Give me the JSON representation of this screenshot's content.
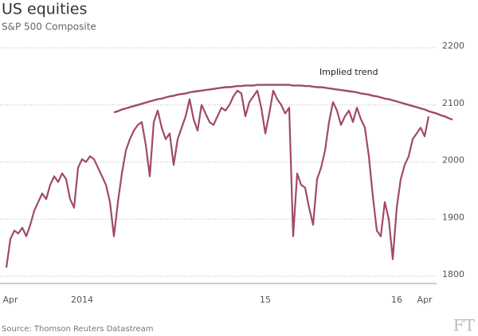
{
  "chart_data": {
    "type": "line",
    "title": "US equities",
    "subtitle": "S&P 500 Composite",
    "source": "Source: Thomson Reuters Datastream",
    "logo": "FT",
    "categories": [
      null,
      "Apr",
      null,
      null,
      null,
      null,
      null,
      null,
      null,
      null,
      null,
      null,
      null,
      null,
      null,
      null,
      null,
      null,
      null,
      "2014",
      null,
      null,
      null,
      null,
      null,
      null,
      null,
      null,
      null,
      null,
      null,
      null,
      null,
      null,
      null,
      null,
      null,
      null,
      null,
      null,
      null,
      null,
      null,
      null,
      null,
      null,
      null,
      null,
      null,
      null,
      null,
      null,
      null,
      null,
      null,
      null,
      null,
      null,
      null,
      null,
      null,
      null,
      null,
      null,
      null,
      "15",
      null,
      null,
      null,
      null,
      null,
      null,
      null,
      null,
      null,
      null,
      null,
      null,
      null,
      null,
      null,
      null,
      null,
      null,
      null,
      null,
      null,
      null,
      null,
      null,
      null,
      null,
      null,
      null,
      null,
      null,
      null,
      null,
      "16",
      null,
      null,
      null,
      null,
      null,
      null,
      "Apr",
      null,
      null,
      null,
      null,
      null,
      null,
      null
    ],
    "series": [
      {
        "color": "#a04a66",
        "values": [
          1815,
          1865,
          1880,
          1875,
          1885,
          1870,
          1890,
          1915,
          1930,
          1945,
          1935,
          1960,
          1975,
          1965,
          1980,
          1970,
          1935,
          1920,
          1990,
          2005,
          2000,
          2010,
          2005,
          1990,
          1975,
          1960,
          1930,
          1870,
          1930,
          1980,
          2020,
          2040,
          2055,
          2065,
          2070,
          2030,
          1975,
          2070,
          2090,
          2060,
          2040,
          2050,
          1995,
          2040,
          2060,
          2080,
          2110,
          2075,
          2055,
          2100,
          2085,
          2070,
          2065,
          2080,
          2095,
          2090,
          2100,
          2115,
          2125,
          2120,
          2080,
          2105,
          2115,
          2125,
          2095,
          2050,
          2085,
          2125,
          2110,
          2100,
          2085,
          2095,
          1870,
          1980,
          1960,
          1955,
          1920,
          1890,
          1970,
          1990,
          2020,
          2070,
          2105,
          2090,
          2065,
          2080,
          2090,
          2070,
          2095,
          2075,
          2060,
          2010,
          1940,
          1880,
          1870,
          1930,
          1900,
          1830,
          1920,
          1970,
          1995,
          2010,
          2040,
          2050,
          2060,
          2045,
          2080,
          null,
          null,
          null,
          null,
          null,
          null
        ]
      },
      {
        "name": "Implied trend",
        "color": "#a04a66",
        "values": [
          null,
          null,
          null,
          null,
          null,
          null,
          null,
          null,
          null,
          null,
          null,
          null,
          null,
          null,
          null,
          null,
          null,
          null,
          null,
          null,
          null,
          null,
          null,
          null,
          null,
          null,
          null,
          2087,
          2089,
          2092,
          2094,
          2096,
          2098,
          2100,
          2102,
          2104,
          2106,
          2108,
          2110,
          2111,
          2113,
          2115,
          2116,
          2118,
          2119,
          2120,
          2122,
          2123,
          2124,
          2125,
          2126,
          2127,
          2128,
          2129,
          2130,
          2131,
          2131,
          2132,
          2133,
          2133,
          2134,
          2134,
          2134,
          2135,
          2135,
          2135,
          2135,
          2135,
          2135,
          2135,
          2135,
          2135,
          2134,
          2134,
          2134,
          2133,
          2133,
          2132,
          2131,
          2131,
          2130,
          2129,
          2128,
          2127,
          2126,
          2125,
          2124,
          2123,
          2122,
          2120,
          2119,
          2118,
          2116,
          2115,
          2113,
          2111,
          2110,
          2108,
          2106,
          2104,
          2102,
          2100,
          2098,
          2096,
          2094,
          2092,
          2089,
          2087,
          2085,
          2082,
          2080,
          2077,
          2074
        ]
      }
    ],
    "ylim": [
      1800,
      2200
    ],
    "yticks": [
      1800,
      1900,
      2000,
      2100,
      2200
    ],
    "grid": true
  }
}
